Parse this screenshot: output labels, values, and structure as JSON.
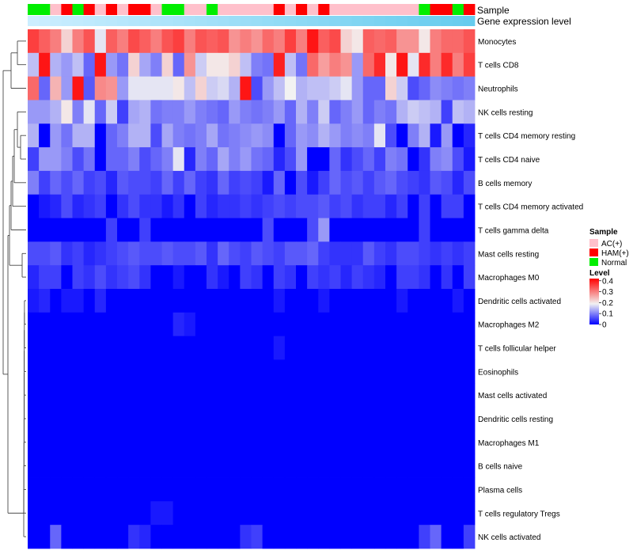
{
  "chart_data": {
    "type": "heatmap",
    "annotations": {
      "sample_label": "Sample",
      "gene_label": "Gene expression level"
    },
    "legend": {
      "sample_title": "Sample",
      "sample_entries": [
        {
          "name": "AC(+)",
          "color": "#ffc0cb"
        },
        {
          "name": "HAM(+)",
          "color": "#ff0000"
        },
        {
          "name": "Normal",
          "color": "#00ee00"
        }
      ],
      "level_title": "Level",
      "level_ticks": [
        "0.4",
        "0.3",
        "0.2",
        "0.1",
        "0"
      ],
      "level_tick_values": [
        0.4,
        0.3,
        0.2,
        0.1,
        0.0
      ],
      "level_range": [
        0,
        0.42
      ]
    },
    "colors": {
      "low": "#0000ff",
      "mid": "#f2f2f2",
      "high": "#ff0000",
      "gene_bar_left": "#cceeff",
      "gene_bar_right": "#66ccee"
    },
    "samples": [
      "Normal",
      "Normal",
      "AC(+)",
      "HAM(+)",
      "Normal",
      "HAM(+)",
      "AC(+)",
      "HAM(+)",
      "AC(+)",
      "HAM(+)",
      "HAM(+)",
      "AC(+)",
      "Normal",
      "Normal",
      "AC(+)",
      "AC(+)",
      "Normal",
      "AC(+)",
      "AC(+)",
      "AC(+)",
      "AC(+)",
      "AC(+)",
      "HAM(+)",
      "AC(+)",
      "HAM(+)",
      "AC(+)",
      "HAM(+)",
      "AC(+)",
      "AC(+)",
      "AC(+)",
      "AC(+)",
      "AC(+)",
      "AC(+)",
      "AC(+)",
      "AC(+)",
      "Normal",
      "HAM(+)",
      "HAM(+)",
      "Normal",
      "HAM(+)"
    ],
    "rows": [
      {
        "name": "Monocytes",
        "values": [
          0.36,
          0.33,
          0.3,
          0.22,
          0.3,
          0.34,
          0.18,
          0.33,
          0.3,
          0.35,
          0.33,
          0.3,
          0.34,
          0.36,
          0.3,
          0.34,
          0.33,
          0.34,
          0.28,
          0.3,
          0.28,
          0.32,
          0.3,
          0.36,
          0.3,
          0.4,
          0.33,
          0.35,
          0.22,
          0.2,
          0.33,
          0.32,
          0.33,
          0.28,
          0.28,
          0.2,
          0.3,
          0.32,
          0.32,
          0.34
        ]
      },
      {
        "name": "T cells CD8",
        "values": [
          0.15,
          0.4,
          0.14,
          0.12,
          0.15,
          0.08,
          0.4,
          0.12,
          0.09,
          0.22,
          0.13,
          0.1,
          0.22,
          0.08,
          0.28,
          0.16,
          0.2,
          0.2,
          0.22,
          0.15,
          0.1,
          0.09,
          0.39,
          0.15,
          0.09,
          0.32,
          0.27,
          0.3,
          0.28,
          0.12,
          0.32,
          0.38,
          0.2,
          0.4,
          0.18,
          0.38,
          0.3,
          0.38,
          0.3,
          0.36
        ]
      },
      {
        "name": "Neutrophils",
        "values": [
          0.32,
          0.08,
          0.25,
          0.12,
          0.4,
          0.07,
          0.29,
          0.28,
          0.12,
          0.18,
          0.18,
          0.18,
          0.18,
          0.2,
          0.15,
          0.22,
          0.16,
          0.17,
          0.14,
          0.4,
          0.06,
          0.12,
          0.15,
          0.19,
          0.14,
          0.15,
          0.15,
          0.16,
          0.18,
          0.12,
          0.08,
          0.08,
          0.22,
          0.16,
          0.06,
          0.08,
          0.11,
          0.1,
          0.09,
          0.1
        ]
      },
      {
        "name": "NK cells resting",
        "values": [
          0.12,
          0.12,
          0.14,
          0.2,
          0.1,
          0.18,
          0.08,
          0.16,
          0.05,
          0.13,
          0.14,
          0.09,
          0.1,
          0.1,
          0.12,
          0.1,
          0.09,
          0.08,
          0.12,
          0.1,
          0.09,
          0.1,
          0.12,
          0.08,
          0.14,
          0.1,
          0.16,
          0.08,
          0.1,
          0.12,
          0.08,
          0.1,
          0.09,
          0.14,
          0.16,
          0.15,
          0.14,
          0.05,
          0.15,
          0.14
        ]
      },
      {
        "name": "T cells CD4 memory resting",
        "values": [
          0.14,
          0.0,
          0.12,
          0.09,
          0.14,
          0.14,
          0.0,
          0.08,
          0.1,
          0.14,
          0.14,
          0.06,
          0.13,
          0.1,
          0.09,
          0.1,
          0.13,
          0.09,
          0.1,
          0.11,
          0.12,
          0.11,
          0.0,
          0.08,
          0.12,
          0.11,
          0.14,
          0.12,
          0.1,
          0.11,
          0.1,
          0.18,
          0.06,
          0.0,
          0.1,
          0.14,
          0.02,
          0.12,
          0.0,
          0.03
        ]
      },
      {
        "name": "T cells CD4 naive",
        "values": [
          0.05,
          0.12,
          0.12,
          0.1,
          0.06,
          0.09,
          0.0,
          0.08,
          0.08,
          0.1,
          0.06,
          0.08,
          0.1,
          0.18,
          0.03,
          0.1,
          0.08,
          0.13,
          0.1,
          0.12,
          0.09,
          0.08,
          0.03,
          0.06,
          0.12,
          0.0,
          0.0,
          0.08,
          0.04,
          0.06,
          0.08,
          0.05,
          0.1,
          0.09,
          0.0,
          0.04,
          0.1,
          0.11,
          0.06,
          0.02
        ]
      },
      {
        "name": "B cells memory",
        "values": [
          0.1,
          0.05,
          0.08,
          0.06,
          0.08,
          0.05,
          0.06,
          0.03,
          0.07,
          0.06,
          0.06,
          0.05,
          0.08,
          0.05,
          0.08,
          0.05,
          0.04,
          0.08,
          0.05,
          0.06,
          0.05,
          0.02,
          0.08,
          0.0,
          0.06,
          0.02,
          0.05,
          0.08,
          0.06,
          0.07,
          0.05,
          0.07,
          0.08,
          0.06,
          0.05,
          0.04,
          0.07,
          0.06,
          0.03,
          0.06
        ]
      },
      {
        "name": "T cells CD4 memory activated",
        "values": [
          0.0,
          0.02,
          0.03,
          0.06,
          0.03,
          0.04,
          0.05,
          0.0,
          0.04,
          0.06,
          0.04,
          0.04,
          0.02,
          0.04,
          0.0,
          0.05,
          0.03,
          0.04,
          0.04,
          0.05,
          0.04,
          0.05,
          0.06,
          0.05,
          0.06,
          0.06,
          0.07,
          0.05,
          0.06,
          0.04,
          0.05,
          0.05,
          0.03,
          0.05,
          0.0,
          0.05,
          0.0,
          0.05,
          0.05,
          0.0
        ]
      },
      {
        "name": "T cells gamma delta",
        "values": [
          0.0,
          0.0,
          0.0,
          0.0,
          0.0,
          0.0,
          0.0,
          0.05,
          0.0,
          0.0,
          0.05,
          0.0,
          0.0,
          0.0,
          0.0,
          0.0,
          0.0,
          0.0,
          0.0,
          0.0,
          0.0,
          0.06,
          0.0,
          0.0,
          0.0,
          0.06,
          0.12,
          0.0,
          0.0,
          0.0,
          0.0,
          0.0,
          0.0,
          0.0,
          0.0,
          0.05,
          0.0,
          0.0,
          0.0,
          0.0
        ]
      },
      {
        "name": "Mast cells resting",
        "values": [
          0.06,
          0.06,
          0.07,
          0.04,
          0.05,
          0.03,
          0.04,
          0.05,
          0.06,
          0.07,
          0.06,
          0.06,
          0.07,
          0.06,
          0.06,
          0.07,
          0.04,
          0.08,
          0.06,
          0.05,
          0.07,
          0.06,
          0.05,
          0.07,
          0.07,
          0.08,
          0.05,
          0.04,
          0.04,
          0.04,
          0.07,
          0.05,
          0.04,
          0.06,
          0.06,
          0.05,
          0.04,
          0.05,
          0.04,
          0.05
        ]
      },
      {
        "name": "Macrophages M0",
        "values": [
          0.03,
          0.05,
          0.05,
          0.0,
          0.05,
          0.04,
          0.06,
          0.04,
          0.05,
          0.06,
          0.04,
          0.0,
          0.0,
          0.02,
          0.0,
          0.0,
          0.04,
          0.02,
          0.0,
          0.05,
          0.04,
          0.0,
          0.05,
          0.04,
          0.0,
          0.05,
          0.04,
          0.05,
          0.03,
          0.05,
          0.04,
          0.03,
          0.0,
          0.05,
          0.05,
          0.04,
          0.0,
          0.04,
          0.0,
          0.05
        ]
      },
      {
        "name": "Dendritic cells activated",
        "values": [
          0.02,
          0.03,
          0.0,
          0.02,
          0.02,
          0.0,
          0.03,
          0.0,
          0.0,
          0.0,
          0.0,
          0.0,
          0.0,
          0.0,
          0.0,
          0.0,
          0.0,
          0.0,
          0.0,
          0.0,
          0.0,
          0.0,
          0.02,
          0.0,
          0.0,
          0.0,
          0.02,
          0.0,
          0.0,
          0.0,
          0.0,
          0.0,
          0.0,
          0.02,
          0.0,
          0.0,
          0.0,
          0.0,
          0.02,
          0.0
        ]
      },
      {
        "name": "Macrophages M2",
        "values": [
          0.0,
          0.0,
          0.0,
          0.0,
          0.0,
          0.0,
          0.0,
          0.0,
          0.0,
          0.0,
          0.0,
          0.0,
          0.0,
          0.03,
          0.02,
          0.0,
          0.0,
          0.0,
          0.0,
          0.0,
          0.0,
          0.0,
          0.0,
          0.0,
          0.0,
          0.0,
          0.0,
          0.0,
          0.0,
          0.0,
          0.0,
          0.0,
          0.0,
          0.0,
          0.0,
          0.0,
          0.0,
          0.0,
          0.0,
          0.0
        ]
      },
      {
        "name": "T cells follicular helper",
        "values": [
          0.0,
          0.0,
          0.0,
          0.0,
          0.0,
          0.0,
          0.0,
          0.0,
          0.0,
          0.0,
          0.0,
          0.0,
          0.0,
          0.0,
          0.0,
          0.0,
          0.0,
          0.0,
          0.0,
          0.0,
          0.0,
          0.0,
          0.02,
          0.0,
          0.0,
          0.0,
          0.0,
          0.0,
          0.0,
          0.0,
          0.0,
          0.0,
          0.0,
          0.0,
          0.0,
          0.0,
          0.0,
          0.0,
          0.0,
          0.0
        ]
      },
      {
        "name": "Eosinophils",
        "values": [
          0.0,
          0.0,
          0.0,
          0.0,
          0.0,
          0.0,
          0.0,
          0.0,
          0.0,
          0.0,
          0.0,
          0.0,
          0.0,
          0.0,
          0.0,
          0.0,
          0.0,
          0.0,
          0.0,
          0.0,
          0.0,
          0.0,
          0.0,
          0.0,
          0.0,
          0.0,
          0.0,
          0.0,
          0.0,
          0.0,
          0.0,
          0.0,
          0.0,
          0.0,
          0.0,
          0.0,
          0.0,
          0.0,
          0.0,
          0.0
        ]
      },
      {
        "name": "Mast cells activated",
        "values": [
          0.0,
          0.0,
          0.0,
          0.0,
          0.0,
          0.0,
          0.0,
          0.0,
          0.0,
          0.0,
          0.0,
          0.0,
          0.0,
          0.0,
          0.0,
          0.0,
          0.0,
          0.0,
          0.0,
          0.0,
          0.0,
          0.0,
          0.0,
          0.0,
          0.0,
          0.0,
          0.0,
          0.0,
          0.0,
          0.0,
          0.0,
          0.0,
          0.0,
          0.0,
          0.0,
          0.0,
          0.0,
          0.0,
          0.0,
          0.0
        ]
      },
      {
        "name": "Dendritic cells resting",
        "values": [
          0.0,
          0.0,
          0.0,
          0.0,
          0.0,
          0.0,
          0.0,
          0.0,
          0.0,
          0.0,
          0.0,
          0.0,
          0.0,
          0.0,
          0.0,
          0.0,
          0.0,
          0.0,
          0.0,
          0.0,
          0.0,
          0.0,
          0.0,
          0.0,
          0.0,
          0.0,
          0.0,
          0.0,
          0.0,
          0.0,
          0.0,
          0.0,
          0.0,
          0.0,
          0.0,
          0.0,
          0.0,
          0.0,
          0.0,
          0.0
        ]
      },
      {
        "name": "Macrophages M1",
        "values": [
          0.0,
          0.0,
          0.0,
          0.0,
          0.0,
          0.0,
          0.0,
          0.0,
          0.0,
          0.0,
          0.0,
          0.0,
          0.0,
          0.0,
          0.0,
          0.0,
          0.0,
          0.0,
          0.0,
          0.0,
          0.0,
          0.0,
          0.0,
          0.0,
          0.0,
          0.0,
          0.0,
          0.0,
          0.0,
          0.0,
          0.0,
          0.0,
          0.0,
          0.0,
          0.0,
          0.0,
          0.0,
          0.0,
          0.0,
          0.0
        ]
      },
      {
        "name": "B cells naive",
        "values": [
          0.0,
          0.0,
          0.0,
          0.0,
          0.0,
          0.0,
          0.0,
          0.0,
          0.0,
          0.0,
          0.0,
          0.0,
          0.0,
          0.0,
          0.0,
          0.0,
          0.0,
          0.0,
          0.0,
          0.0,
          0.0,
          0.0,
          0.0,
          0.0,
          0.0,
          0.0,
          0.0,
          0.0,
          0.0,
          0.0,
          0.0,
          0.0,
          0.0,
          0.0,
          0.0,
          0.0,
          0.0,
          0.0,
          0.0,
          0.0
        ]
      },
      {
        "name": "Plasma cells",
        "values": [
          0.0,
          0.0,
          0.0,
          0.0,
          0.0,
          0.0,
          0.0,
          0.0,
          0.0,
          0.0,
          0.0,
          0.0,
          0.0,
          0.0,
          0.0,
          0.0,
          0.0,
          0.0,
          0.0,
          0.0,
          0.0,
          0.0,
          0.0,
          0.0,
          0.0,
          0.0,
          0.0,
          0.0,
          0.0,
          0.0,
          0.0,
          0.0,
          0.0,
          0.0,
          0.0,
          0.0,
          0.0,
          0.0,
          0.0,
          0.0
        ]
      },
      {
        "name": "T cells regulatory  Tregs",
        "values": [
          0.0,
          0.0,
          0.0,
          0.0,
          0.0,
          0.0,
          0.0,
          0.0,
          0.0,
          0.0,
          0.0,
          0.02,
          0.02,
          0.0,
          0.0,
          0.0,
          0.0,
          0.0,
          0.0,
          0.0,
          0.0,
          0.0,
          0.0,
          0.0,
          0.0,
          0.0,
          0.0,
          0.0,
          0.0,
          0.0,
          0.0,
          0.0,
          0.0,
          0.0,
          0.0,
          0.0,
          0.0,
          0.0,
          0.0,
          0.0
        ]
      },
      {
        "name": "NK cells activated",
        "values": [
          0.0,
          0.0,
          0.08,
          0.0,
          0.0,
          0.0,
          0.0,
          0.0,
          0.0,
          0.04,
          0.03,
          0.0,
          0.0,
          0.0,
          0.0,
          0.0,
          0.0,
          0.0,
          0.0,
          0.04,
          0.05,
          0.0,
          0.0,
          0.0,
          0.0,
          0.0,
          0.0,
          0.0,
          0.0,
          0.0,
          0.0,
          0.0,
          0.0,
          0.0,
          0.0,
          0.05,
          0.08,
          0.0,
          0.0,
          0.05
        ]
      }
    ]
  }
}
